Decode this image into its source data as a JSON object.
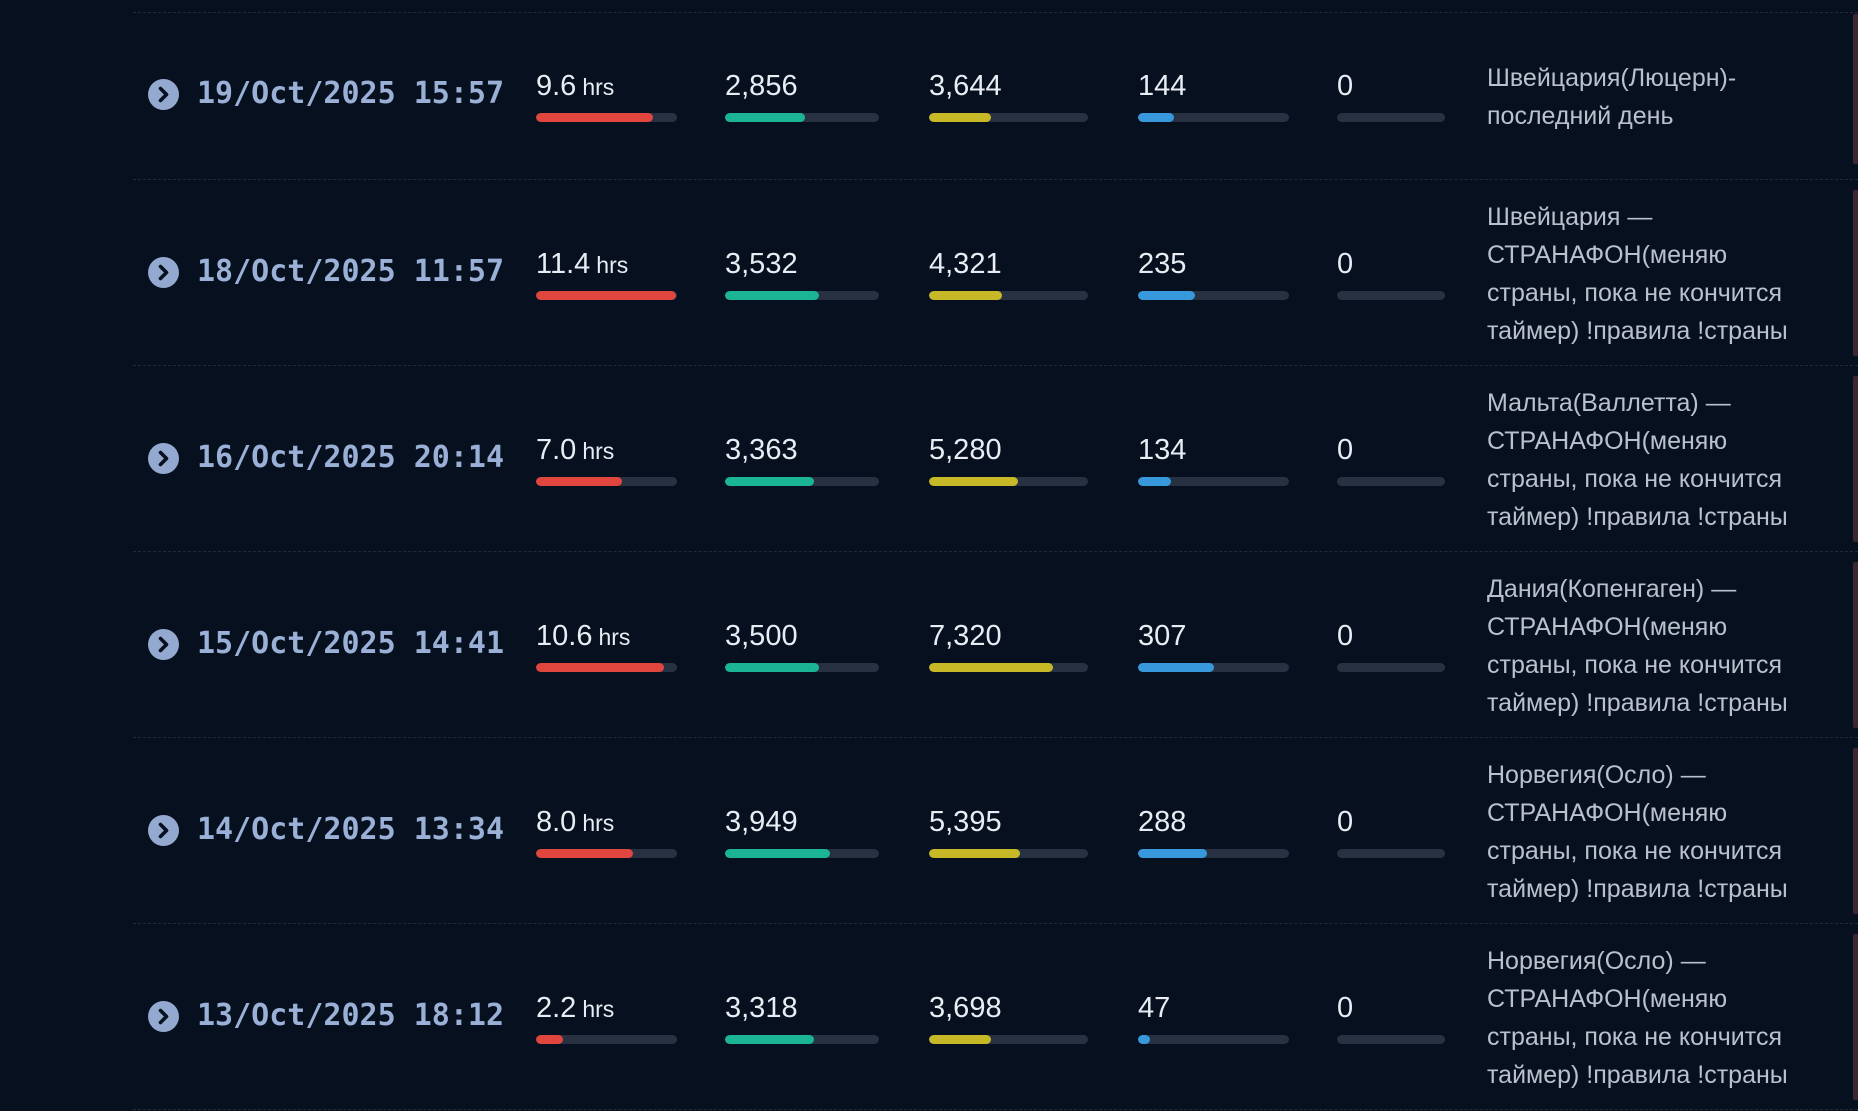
{
  "streams": [
    {
      "date": "19/Oct/2025 15:57",
      "duration": "9.6",
      "duration_unit": "hrs",
      "duration_fraction": 0.83,
      "metric_a": "2,856",
      "metric_a_fraction": 0.52,
      "metric_b": "3,644",
      "metric_b_fraction": 0.39,
      "metric_c": "144",
      "metric_c_fraction": 0.24,
      "metric_d": "0",
      "metric_d_fraction": 0,
      "title": "Швейцария(Люцерн)- последний день"
    },
    {
      "date": "18/Oct/2025 11:57",
      "duration": "11.4",
      "duration_unit": "hrs",
      "duration_fraction": 0.99,
      "metric_a": "3,532",
      "metric_a_fraction": 0.61,
      "metric_b": "4,321",
      "metric_b_fraction": 0.46,
      "metric_c": "235",
      "metric_c_fraction": 0.38,
      "metric_d": "0",
      "metric_d_fraction": 0,
      "title": "Швейцария — СТРАНАФОН(меняю страны, пока не кончится таймер) !правила !страны"
    },
    {
      "date": "16/Oct/2025 20:14",
      "duration": "7.0",
      "duration_unit": "hrs",
      "duration_fraction": 0.61,
      "metric_a": "3,363",
      "metric_a_fraction": 0.58,
      "metric_b": "5,280",
      "metric_b_fraction": 0.56,
      "metric_c": "134",
      "metric_c_fraction": 0.22,
      "metric_d": "0",
      "metric_d_fraction": 0,
      "title": "Мальта(Валлетта) — СТРАНАФОН(меняю страны, пока не кончится таймер) !правила !страны"
    },
    {
      "date": "15/Oct/2025 14:41",
      "duration": "10.6",
      "duration_unit": "hrs",
      "duration_fraction": 0.91,
      "metric_a": "3,500",
      "metric_a_fraction": 0.61,
      "metric_b": "7,320",
      "metric_b_fraction": 0.78,
      "metric_c": "307",
      "metric_c_fraction": 0.5,
      "metric_d": "0",
      "metric_d_fraction": 0,
      "title": "Дания(Копенгаген) — СТРАНАФОН(меняю страны, пока не кончится таймер) !правила !страны"
    },
    {
      "date": "14/Oct/2025 13:34",
      "duration": "8.0",
      "duration_unit": "hrs",
      "duration_fraction": 0.69,
      "metric_a": "3,949",
      "metric_a_fraction": 0.68,
      "metric_b": "5,395",
      "metric_b_fraction": 0.57,
      "metric_c": "288",
      "metric_c_fraction": 0.46,
      "metric_d": "0",
      "metric_d_fraction": 0,
      "title": "Норвегия(Осло) — СТРАНАФОН(меняю страны, пока не кончится таймер) !правила !страны"
    },
    {
      "date": "13/Oct/2025 18:12",
      "duration": "2.2",
      "duration_unit": "hrs",
      "duration_fraction": 0.19,
      "metric_a": "3,318",
      "metric_a_fraction": 0.58,
      "metric_b": "3,698",
      "metric_b_fraction": 0.39,
      "metric_c": "47",
      "metric_c_fraction": 0.08,
      "metric_d": "0",
      "metric_d_fraction": 0,
      "title": "Норвегия(Осло) — СТРАНАФОН(меняю страны, пока не кончится таймер) !правила !страны"
    }
  ],
  "colors": {
    "background": "#06101e",
    "date": "#9ab0d6",
    "duration_bar": "#e0453e",
    "metric_a_bar": "#1bb595",
    "metric_b_bar": "#c6b826",
    "metric_c_bar": "#3799dc",
    "track": "#273141"
  },
  "icons": {
    "row_expand": "chevron-right-circle-icon"
  }
}
